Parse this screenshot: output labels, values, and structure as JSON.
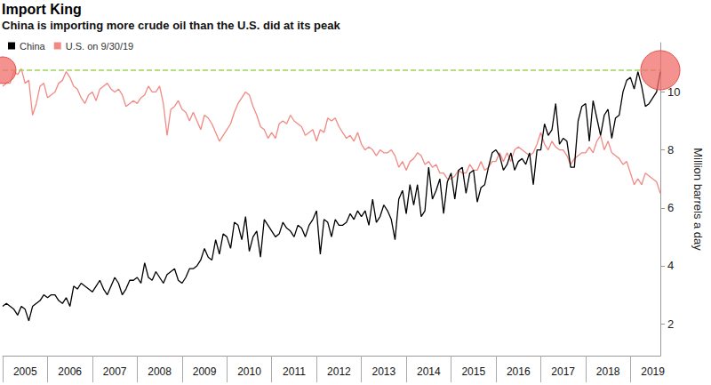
{
  "chart_data": {
    "type": "line",
    "title": "Import King",
    "subtitle": "China is importing more crude oil than the U.S. did at its peak",
    "y_label": "Million barrels a day",
    "categories": [
      null,
      null,
      null,
      null,
      null,
      null,
      "2005",
      null,
      null,
      null,
      null,
      null,
      null,
      null,
      null,
      null,
      null,
      null,
      "2006",
      null,
      null,
      null,
      null,
      null,
      null,
      null,
      null,
      null,
      null,
      null,
      "2007",
      null,
      null,
      null,
      null,
      null,
      null,
      null,
      null,
      null,
      null,
      null,
      "2008",
      null,
      null,
      null,
      null,
      null,
      null,
      null,
      null,
      null,
      null,
      null,
      "2009",
      null,
      null,
      null,
      null,
      null,
      null,
      null,
      null,
      null,
      null,
      null,
      "2010",
      null,
      null,
      null,
      null,
      null,
      null,
      null,
      null,
      null,
      null,
      null,
      "2011",
      null,
      null,
      null,
      null,
      null,
      null,
      null,
      null,
      null,
      null,
      null,
      "2012",
      null,
      null,
      null,
      null,
      null,
      null,
      null,
      null,
      null,
      null,
      null,
      "2013",
      null,
      null,
      null,
      null,
      null,
      null,
      null,
      null,
      null,
      null,
      null,
      "2014",
      null,
      null,
      null,
      null,
      null,
      null,
      null,
      null,
      null,
      null,
      null,
      "2015",
      null,
      null,
      null,
      null,
      null,
      null,
      null,
      null,
      null,
      null,
      null,
      "2016",
      null,
      null,
      null,
      null,
      null,
      null,
      null,
      null,
      null,
      null,
      null,
      "2017",
      null,
      null,
      null,
      null,
      null,
      null,
      null,
      null,
      null,
      null,
      null,
      "2018",
      null,
      null,
      null,
      null,
      null,
      null,
      null,
      null,
      null,
      null,
      null,
      "2019",
      null,
      null
    ],
    "series": [
      {
        "name": "China",
        "color": "#000000",
        "values": [
          2.6,
          2.7,
          2.6,
          2.5,
          2.3,
          2.6,
          2.5,
          2.1,
          2.6,
          2.7,
          2.8,
          3.0,
          2.9,
          3.0,
          3.0,
          2.8,
          2.7,
          2.9,
          2.6,
          3.3,
          3.2,
          3.4,
          3.3,
          3.2,
          3.1,
          3.3,
          3.5,
          3.2,
          3.0,
          3.3,
          3.6,
          3.4,
          3.0,
          3.2,
          3.5,
          3.5,
          3.6,
          3.4,
          4.1,
          3.6,
          3.5,
          3.8,
          3.6,
          3.4,
          3.7,
          3.8,
          3.9,
          3.5,
          3.4,
          3.6,
          3.9,
          3.9,
          4.0,
          4.2,
          4.6,
          4.3,
          4.2,
          4.9,
          4.4,
          5.1,
          5.0,
          4.6,
          5.5,
          5.4,
          4.9,
          5.7,
          4.5,
          5.0,
          5.2,
          4.3,
          5.6,
          5.4,
          5.2,
          5.0,
          5.1,
          5.5,
          5.3,
          5.2,
          5.0,
          5.4,
          5.3,
          5.0,
          5.4,
          5.6,
          5.9,
          4.4,
          5.6,
          5.5,
          5.0,
          5.6,
          5.4,
          5.4,
          5.5,
          5.8,
          5.6,
          5.9,
          5.7,
          5.9,
          5.4,
          6.3,
          5.5,
          5.7,
          6.1,
          5.9,
          5.6,
          4.9,
          6.3,
          6.6,
          5.8,
          6.8,
          6.1,
          6.8,
          5.7,
          5.9,
          7.4,
          6.3,
          6.6,
          7.0,
          5.8,
          6.9,
          7.2,
          6.3,
          7.3,
          7.4,
          6.5,
          7.2,
          7.3,
          6.2,
          6.7,
          6.8,
          7.4,
          7.9,
          8.0,
          7.8,
          7.3,
          7.5,
          7.9,
          7.3,
          7.6,
          7.7,
          7.5,
          7.9,
          6.8,
          8.0,
          8.0,
          8.9,
          8.5,
          8.7,
          9.6,
          8.2,
          8.4,
          8.3,
          7.4,
          7.4,
          9.0,
          9.5,
          9.6,
          8.3,
          9.7,
          9.1,
          8.5,
          9.2,
          9.4,
          8.4,
          9.1,
          9.2,
          10.0,
          10.4,
          10.5,
          10.1,
          10.7,
          10.2,
          9.5,
          9.6,
          9.8,
          10.0,
          10.7
        ]
      },
      {
        "name": "U.S. on 9/30/19",
        "color": "#f28a84",
        "peak": 10.75,
        "values": [
          10.2,
          10.3,
          10.3,
          10.7,
          10.6,
          10.8,
          10.3,
          10.4,
          9.2,
          9.6,
          10.2,
          10.3,
          9.8,
          9.9,
          10.0,
          10.3,
          10.4,
          10.7,
          10.5,
          10.2,
          10.1,
          9.8,
          9.6,
          9.9,
          10.0,
          9.7,
          10.1,
          10.2,
          10.3,
          10.1,
          10.0,
          10.1,
          9.9,
          9.5,
          9.6,
          9.7,
          9.6,
          9.8,
          9.9,
          10.2,
          10.0,
          10.0,
          10.2,
          9.6,
          8.5,
          9.4,
          9.5,
          9.7,
          9.4,
          9.3,
          9.0,
          9.3,
          9.0,
          8.7,
          9.2,
          9.1,
          8.9,
          8.6,
          8.3,
          8.5,
          8.7,
          8.9,
          9.3,
          9.6,
          9.8,
          10.0,
          9.9,
          9.5,
          9.2,
          8.8,
          8.7,
          8.4,
          8.6,
          8.4,
          8.9,
          9.0,
          8.9,
          9.2,
          9.0,
          8.9,
          8.8,
          8.5,
          8.6,
          8.7,
          8.3,
          8.7,
          8.6,
          9.1,
          9.0,
          9.1,
          8.8,
          8.6,
          8.4,
          8.5,
          8.3,
          8.6,
          8.2,
          8.0,
          8.1,
          8.0,
          7.8,
          8.0,
          7.9,
          7.9,
          8.0,
          7.8,
          7.4,
          7.6,
          7.3,
          7.6,
          7.7,
          7.9,
          7.8,
          7.5,
          7.6,
          7.4,
          7.5,
          7.2,
          7.2,
          7.0,
          7.0,
          7.1,
          7.3,
          7.2,
          7.2,
          7.5,
          7.3,
          7.3,
          7.6,
          7.3,
          7.4,
          7.6,
          7.6,
          7.9,
          7.6,
          7.9,
          7.6,
          8.0,
          8.1,
          8.0,
          7.9,
          7.8,
          7.9,
          8.2,
          8.6,
          8.2,
          8.0,
          8.3,
          8.1,
          8.0,
          8.0,
          7.8,
          7.5,
          7.7,
          7.8,
          7.9,
          7.9,
          8.1,
          7.9,
          8.3,
          8.5,
          8.0,
          8.3,
          7.9,
          7.8,
          7.7,
          7.5,
          7.6,
          7.2,
          6.8,
          7.0,
          6.8,
          7.2,
          7.1,
          7.0,
          6.9,
          6.5
        ]
      }
    ],
    "ylim": [
      0.9,
      11.7
    ],
    "yticks": [
      2,
      4,
      6,
      8,
      10
    ],
    "grid": false,
    "legend": "top-left"
  }
}
